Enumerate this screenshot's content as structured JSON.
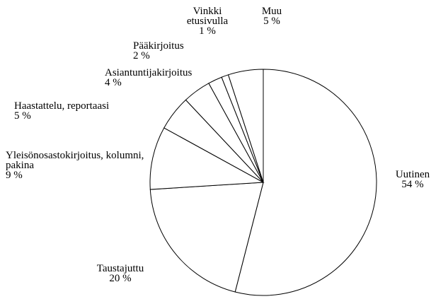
{
  "chart_data": {
    "type": "pie",
    "categories": [
      "Uutinen",
      "Taustajuttu",
      "Yleisönosastokirjoitus, kolumni, pakina",
      "Haastattelu, reportaasi",
      "Asiantuntijakirjoitus",
      "Pääkirjoitus",
      "Vinkki etusivulla",
      "Muu"
    ],
    "values": [
      54,
      20,
      9,
      5,
      4,
      2,
      1,
      5
    ],
    "value_labels": [
      "54 %",
      "20 %",
      "9 %",
      "5 %",
      "4 %",
      "2 %",
      "1 %",
      "5 %"
    ],
    "color": "#ffffff"
  }
}
